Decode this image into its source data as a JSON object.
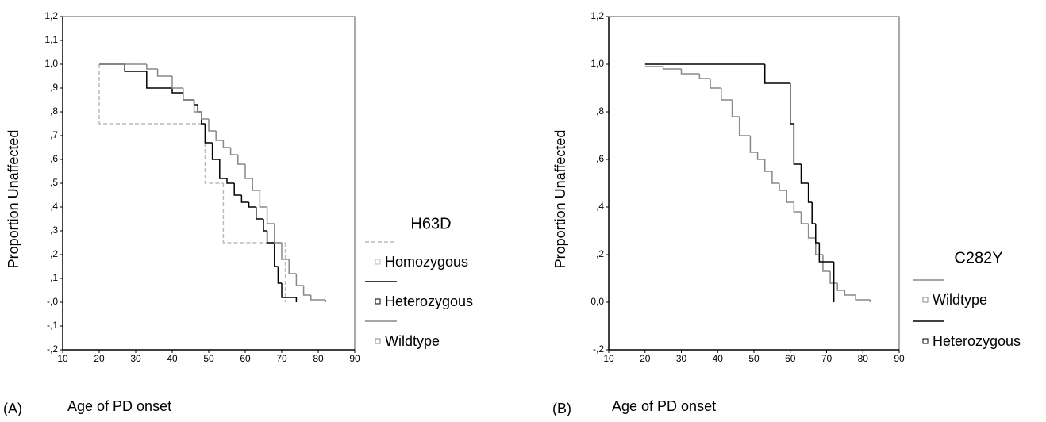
{
  "chart_data": [
    {
      "type": "step",
      "panel_label": "(A)",
      "xlabel": "Age of PD onset",
      "ylabel": "Proportion Unaffected",
      "legend_title": "H63D",
      "xlim": [
        10,
        90
      ],
      "xticks": [
        10,
        20,
        30,
        40,
        50,
        60,
        70,
        80,
        90
      ],
      "ylim": [
        -0.2,
        1.2
      ],
      "yticks": [
        {
          "value": -0.2,
          "label": "-,2"
        },
        {
          "value": -0.1,
          "label": "-,1"
        },
        {
          "value": 0,
          "label": "-,0"
        },
        {
          "value": 0.1,
          "label": ",1"
        },
        {
          "value": 0.2,
          "label": ",2"
        },
        {
          "value": 0.3,
          "label": ",3"
        },
        {
          "value": 0.4,
          "label": ",4"
        },
        {
          "value": 0.5,
          "label": ",5"
        },
        {
          "value": 0.6,
          "label": ",6"
        },
        {
          "value": 0.7,
          "label": ",7"
        },
        {
          "value": 0.8,
          "label": ",8"
        },
        {
          "value": 0.9,
          "label": ",9"
        },
        {
          "value": 1.0,
          "label": "1,0"
        },
        {
          "value": 1.1,
          "label": "1,1"
        },
        {
          "value": 1.2,
          "label": "1,2"
        }
      ],
      "series": [
        {
          "name": "Homozygous",
          "color": "#bbbbbb",
          "line_style": "dashed",
          "x": [
            20,
            20,
            49,
            54,
            71
          ],
          "values": [
            1.0,
            0.75,
            0.5,
            0.25,
            0.0
          ]
        },
        {
          "name": "Heterozygous",
          "color": "#000000",
          "line_style": "solid",
          "x": [
            20,
            27,
            33,
            40,
            43,
            46,
            47,
            48,
            49,
            51,
            53,
            55,
            57,
            59,
            61,
            63,
            65,
            66,
            68,
            69,
            70,
            74
          ],
          "values": [
            1.0,
            0.97,
            0.9,
            0.88,
            0.85,
            0.83,
            0.8,
            0.75,
            0.67,
            0.6,
            0.52,
            0.5,
            0.45,
            0.42,
            0.4,
            0.35,
            0.3,
            0.25,
            0.15,
            0.08,
            0.02,
            0.0
          ]
        },
        {
          "name": "Wildtype",
          "color": "#888888",
          "line_style": "solid",
          "x": [
            20,
            31,
            33,
            36,
            40,
            43,
            46,
            48,
            50,
            52,
            54,
            56,
            58,
            60,
            62,
            64,
            66,
            68,
            70,
            72,
            74,
            76,
            78,
            82
          ],
          "values": [
            1.0,
            1.0,
            0.98,
            0.95,
            0.9,
            0.85,
            0.8,
            0.77,
            0.72,
            0.68,
            0.65,
            0.62,
            0.58,
            0.52,
            0.47,
            0.4,
            0.33,
            0.25,
            0.18,
            0.12,
            0.07,
            0.03,
            0.01,
            0.0
          ]
        }
      ]
    },
    {
      "type": "step",
      "panel_label": "(B)",
      "xlabel": "Age of PD onset",
      "ylabel": "Proportion Unaffected",
      "legend_title": "C282Y",
      "xlim": [
        10,
        90
      ],
      "xticks": [
        10,
        20,
        30,
        40,
        50,
        60,
        70,
        80,
        90
      ],
      "ylim": [
        -0.2,
        1.2
      ],
      "yticks": [
        {
          "value": -0.2,
          "label": "-,2"
        },
        {
          "value": 0,
          "label": "0,0"
        },
        {
          "value": 0.2,
          "label": ",2"
        },
        {
          "value": 0.4,
          "label": ",4"
        },
        {
          "value": 0.6,
          "label": ",6"
        },
        {
          "value": 0.8,
          "label": ",8"
        },
        {
          "value": 1.0,
          "label": "1,0"
        },
        {
          "value": 1.2,
          "label": "1,2"
        }
      ],
      "series": [
        {
          "name": "Wildtype",
          "color": "#888888",
          "line_style": "solid",
          "x": [
            20,
            25,
            30,
            35,
            38,
            41,
            44,
            46,
            49,
            51,
            53,
            55,
            57,
            59,
            61,
            63,
            65,
            67,
            69,
            71,
            73,
            75,
            78,
            82
          ],
          "values": [
            0.99,
            0.98,
            0.96,
            0.94,
            0.9,
            0.85,
            0.78,
            0.7,
            0.63,
            0.6,
            0.55,
            0.5,
            0.47,
            0.42,
            0.38,
            0.33,
            0.27,
            0.2,
            0.13,
            0.08,
            0.05,
            0.03,
            0.01,
            0.0
          ]
        },
        {
          "name": "Heterozygous",
          "color": "#000000",
          "line_style": "solid",
          "x": [
            20,
            53,
            60,
            61,
            63,
            65,
            66,
            67,
            68,
            72
          ],
          "values": [
            1.0,
            0.92,
            0.75,
            0.58,
            0.5,
            0.42,
            0.33,
            0.25,
            0.17,
            0.0
          ]
        }
      ]
    }
  ]
}
